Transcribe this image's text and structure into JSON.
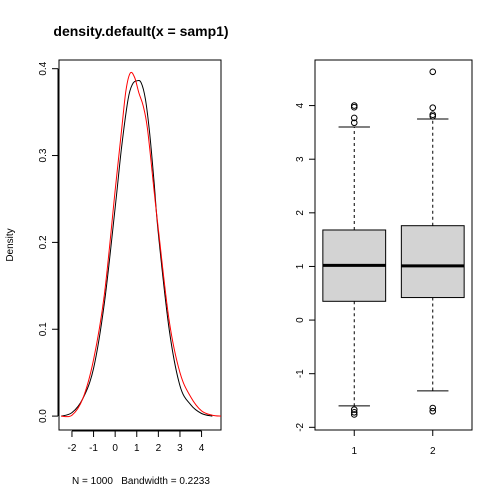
{
  "chart_data": [
    {
      "type": "line",
      "title": "density.default(x = samp1)",
      "xlabel": "N = 1000   Bandwidth = 0.2233",
      "ylabel": "Density",
      "xlim": [
        -2.6,
        4.9
      ],
      "ylim": [
        -0.016,
        0.41
      ],
      "x_ticks": [
        -2,
        -1,
        0,
        1,
        2,
        3,
        4
      ],
      "y_ticks": [
        0.0,
        0.1,
        0.2,
        0.3,
        0.4
      ],
      "x_tick_labels": [
        "-2",
        "-1",
        "0",
        "1",
        "2",
        "3",
        "4"
      ],
      "y_tick_labels": [
        "0.0",
        "0.1",
        "0.2",
        "0.3",
        "0.4"
      ],
      "series": [
        {
          "color": "#000000",
          "x": [
            -2.5,
            -2.0,
            -1.5,
            -1.0,
            -0.5,
            0.0,
            0.3,
            0.6,
            0.8,
            1.0,
            1.2,
            1.4,
            1.6,
            1.8,
            2.0,
            2.5,
            3.0,
            3.5,
            4.0,
            4.5
          ],
          "y": [
            0.0,
            0.004,
            0.02,
            0.055,
            0.13,
            0.24,
            0.31,
            0.365,
            0.382,
            0.386,
            0.384,
            0.365,
            0.325,
            0.27,
            0.21,
            0.1,
            0.035,
            0.013,
            0.003,
            0.0
          ]
        },
        {
          "color": "#ff0000",
          "x": [
            -2.5,
            -2.0,
            -1.5,
            -1.0,
            -0.5,
            0.0,
            0.3,
            0.5,
            0.7,
            0.9,
            1.1,
            1.3,
            1.5,
            1.8,
            2.0,
            2.5,
            3.0,
            3.5,
            4.0,
            4.5,
            4.9
          ],
          "y": [
            0.0,
            0.001,
            0.02,
            0.065,
            0.14,
            0.26,
            0.33,
            0.375,
            0.395,
            0.39,
            0.372,
            0.357,
            0.33,
            0.26,
            0.215,
            0.11,
            0.05,
            0.022,
            0.006,
            0.001,
            0.0
          ]
        }
      ]
    },
    {
      "type": "boxplot",
      "categories": [
        "1",
        "2"
      ],
      "ylim": [
        -2.05,
        4.85
      ],
      "y_ticks": [
        -2,
        -1,
        0,
        1,
        2,
        3,
        4
      ],
      "y_tick_labels": [
        "-2",
        "-1",
        "0",
        "1",
        "2",
        "3",
        "4"
      ],
      "fill": "#d3d3d3",
      "boxes": [
        {
          "category": "1",
          "whisker_low": -1.6,
          "q1": 0.35,
          "median": 1.02,
          "q3": 1.68,
          "whisker_high": 3.6,
          "outliers": [
            3.68,
            3.77,
            3.97,
            4.0,
            -1.67,
            -1.72,
            -1.76
          ]
        },
        {
          "category": "2",
          "whisker_low": -1.32,
          "q1": 0.42,
          "median": 1.01,
          "q3": 1.76,
          "whisker_high": 3.75,
          "outliers": [
            3.8,
            3.83,
            3.96,
            4.63,
            -1.64,
            -1.7
          ]
        }
      ]
    }
  ]
}
